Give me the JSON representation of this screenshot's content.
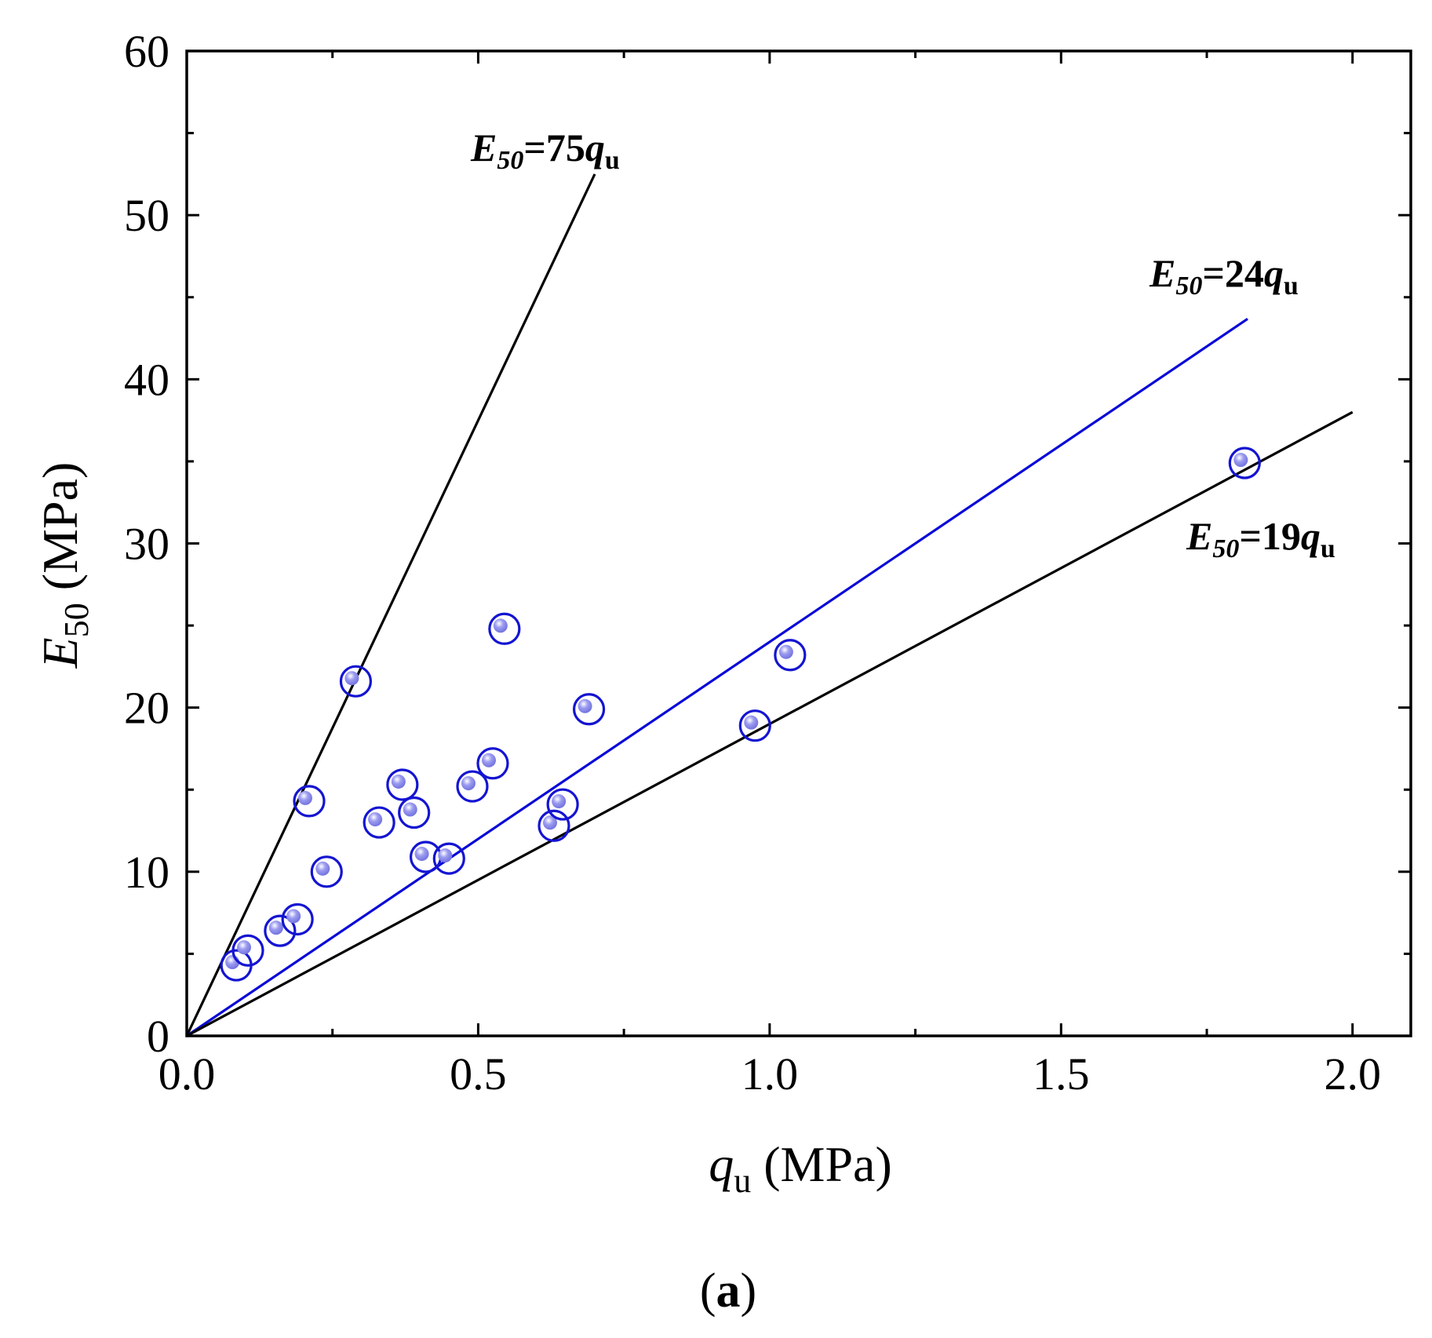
{
  "chart_data": {
    "type": "scatter",
    "title": "",
    "panel_label": "a",
    "x_axis": {
      "label_symbol": "q",
      "label_subscript": "u",
      "label_unit": "(MPa)",
      "range": [
        0,
        2.1
      ],
      "ticks": [
        0.0,
        0.5,
        1.0,
        1.5,
        2.0
      ],
      "tick_labels": [
        "0.0",
        "0.5",
        "1.0",
        "1.5",
        "2.0"
      ],
      "minor_step": 0.25
    },
    "y_axis": {
      "label_symbol": "E",
      "label_subscript": "50",
      "label_unit": "(MPa)",
      "range": [
        0,
        60
      ],
      "ticks": [
        0,
        10,
        20,
        30,
        40,
        50,
        60
      ],
      "tick_labels": [
        "0",
        "10",
        "20",
        "30",
        "40",
        "50",
        "60"
      ],
      "minor_step": 5
    },
    "grid": false,
    "tick_direction": "in",
    "marker": {
      "shape": "open-circle-with-sphere",
      "ring_color": "#1414d2",
      "fill_color": "#9c9cf0"
    },
    "points": [
      {
        "x": 0.085,
        "y": 4.3
      },
      {
        "x": 0.105,
        "y": 5.2
      },
      {
        "x": 0.16,
        "y": 6.4
      },
      {
        "x": 0.19,
        "y": 7.1
      },
      {
        "x": 0.21,
        "y": 14.3
      },
      {
        "x": 0.24,
        "y": 10.0
      },
      {
        "x": 0.29,
        "y": 21.6
      },
      {
        "x": 0.33,
        "y": 13.0
      },
      {
        "x": 0.37,
        "y": 15.3
      },
      {
        "x": 0.39,
        "y": 13.6
      },
      {
        "x": 0.41,
        "y": 10.9
      },
      {
        "x": 0.45,
        "y": 10.8
      },
      {
        "x": 0.49,
        "y": 15.2
      },
      {
        "x": 0.525,
        "y": 16.6
      },
      {
        "x": 0.545,
        "y": 24.8
      },
      {
        "x": 0.63,
        "y": 12.8
      },
      {
        "x": 0.645,
        "y": 14.1
      },
      {
        "x": 0.69,
        "y": 19.9
      },
      {
        "x": 0.975,
        "y": 18.9
      },
      {
        "x": 1.035,
        "y": 23.2
      },
      {
        "x": 1.815,
        "y": 34.9
      }
    ],
    "lines": [
      {
        "slope": 75,
        "x_end": 0.7,
        "color": "#000000",
        "label": {
          "base": "E",
          "sub": "50",
          "eq": "=75",
          "var": "q",
          "var_sub": "u"
        }
      },
      {
        "slope": 24,
        "x_end": 1.82,
        "color": "#0a0ad8",
        "label": {
          "base": "E",
          "sub": "50",
          "eq": "=24",
          "var": "q",
          "var_sub": "u"
        }
      },
      {
        "slope": 19,
        "x_end": 2.0,
        "color": "#000000",
        "label": {
          "base": "E",
          "sub": "50",
          "eq": "=19",
          "var": "q",
          "var_sub": "u"
        }
      }
    ]
  }
}
